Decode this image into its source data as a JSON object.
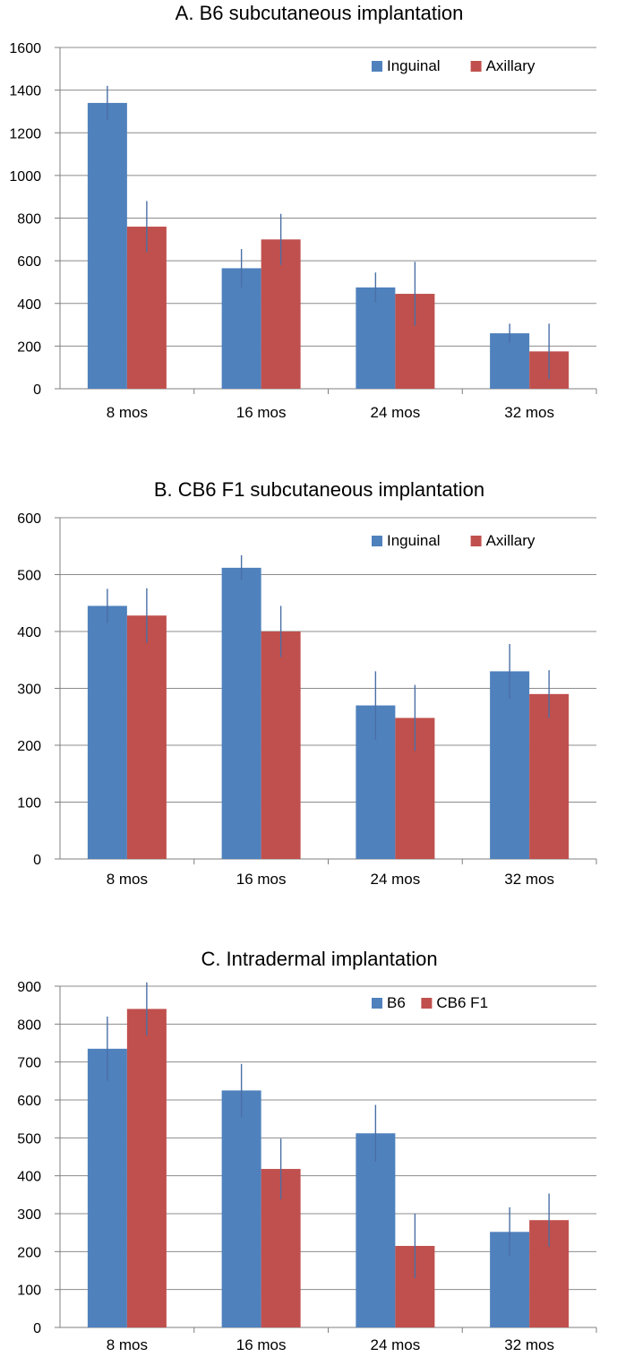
{
  "chart_data": [
    {
      "type": "bar",
      "title": "A. B6 subcutaneous implantation",
      "xlabel": "",
      "ylabel": "",
      "ylim": [
        0,
        1600
      ],
      "yticks": [
        "0",
        "200",
        "400",
        "600",
        "800",
        "1000",
        "1200",
        "1400",
        "1600"
      ],
      "grid": true,
      "legend": "top-right",
      "categories": [
        "8 mos",
        "16 mos",
        "24 mos",
        "32 mos"
      ],
      "series": [
        {
          "name": "Inguinal",
          "color": "#4f81bd",
          "values": [
            1340,
            565,
            475,
            260
          ],
          "errors": [
            80,
            90,
            70,
            45
          ]
        },
        {
          "name": "Axillary",
          "color": "#c0504d",
          "values": [
            760,
            700,
            445,
            175
          ],
          "errors": [
            120,
            120,
            150,
            130
          ]
        }
      ]
    },
    {
      "type": "bar",
      "title": "B. CB6 F1 subcutaneous implantation",
      "xlabel": "",
      "ylabel": "",
      "ylim": [
        0,
        600
      ],
      "yticks": [
        "0",
        "100",
        "200",
        "300",
        "400",
        "500",
        "600"
      ],
      "grid": true,
      "legend": "top-right",
      "categories": [
        "8 mos",
        "16 mos",
        "24 mos",
        "32 mos"
      ],
      "series": [
        {
          "name": "Inguinal",
          "color": "#4f81bd",
          "values": [
            445,
            512,
            270,
            330
          ],
          "errors": [
            30,
            22,
            60,
            48
          ]
        },
        {
          "name": "Axillary",
          "color": "#c0504d",
          "values": [
            428,
            400,
            248,
            290
          ],
          "errors": [
            48,
            45,
            58,
            42
          ]
        }
      ]
    },
    {
      "type": "bar",
      "title": "C. Intradermal implantation",
      "xlabel": "",
      "ylabel": "",
      "ylim": [
        0,
        900
      ],
      "yticks": [
        "0",
        "100",
        "200",
        "300",
        "400",
        "500",
        "600",
        "700",
        "800",
        "900"
      ],
      "grid": true,
      "legend": "top-right",
      "categories": [
        "8 mos",
        "16 mos",
        "24 mos",
        "32 mos"
      ],
      "series": [
        {
          "name": "B6",
          "color": "#4f81bd",
          "values": [
            735,
            625,
            512,
            252
          ],
          "errors": [
            85,
            70,
            75,
            65
          ]
        },
        {
          "name": "CB6 F1",
          "color": "#c0504d",
          "values": [
            840,
            418,
            215,
            283
          ],
          "errors": [
            70,
            80,
            85,
            70
          ]
        }
      ]
    }
  ]
}
